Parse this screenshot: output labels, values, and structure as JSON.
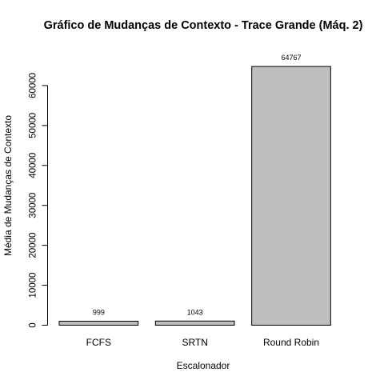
{
  "chart_data": {
    "type": "bar",
    "title": "Gráfico de Mudanças de Contexto - Trace Grande (Máq. 2)",
    "xlabel": "Escalonador",
    "ylabel": "Média de Mudanças de Contexto",
    "categories": [
      "FCFS",
      "SRTN",
      "Round Robin"
    ],
    "values": [
      999,
      1043,
      64767
    ],
    "data_labels": [
      "999",
      "1043",
      "64767"
    ],
    "yticks": [
      0,
      10000,
      20000,
      30000,
      40000,
      50000,
      60000
    ],
    "ytick_labels": [
      "0",
      "10000",
      "20000",
      "30000",
      "40000",
      "50000",
      "60000"
    ],
    "ylim": [
      0,
      65000
    ],
    "grid": false,
    "bar_color": "#bebebe",
    "bar_border_color": "#000000"
  }
}
